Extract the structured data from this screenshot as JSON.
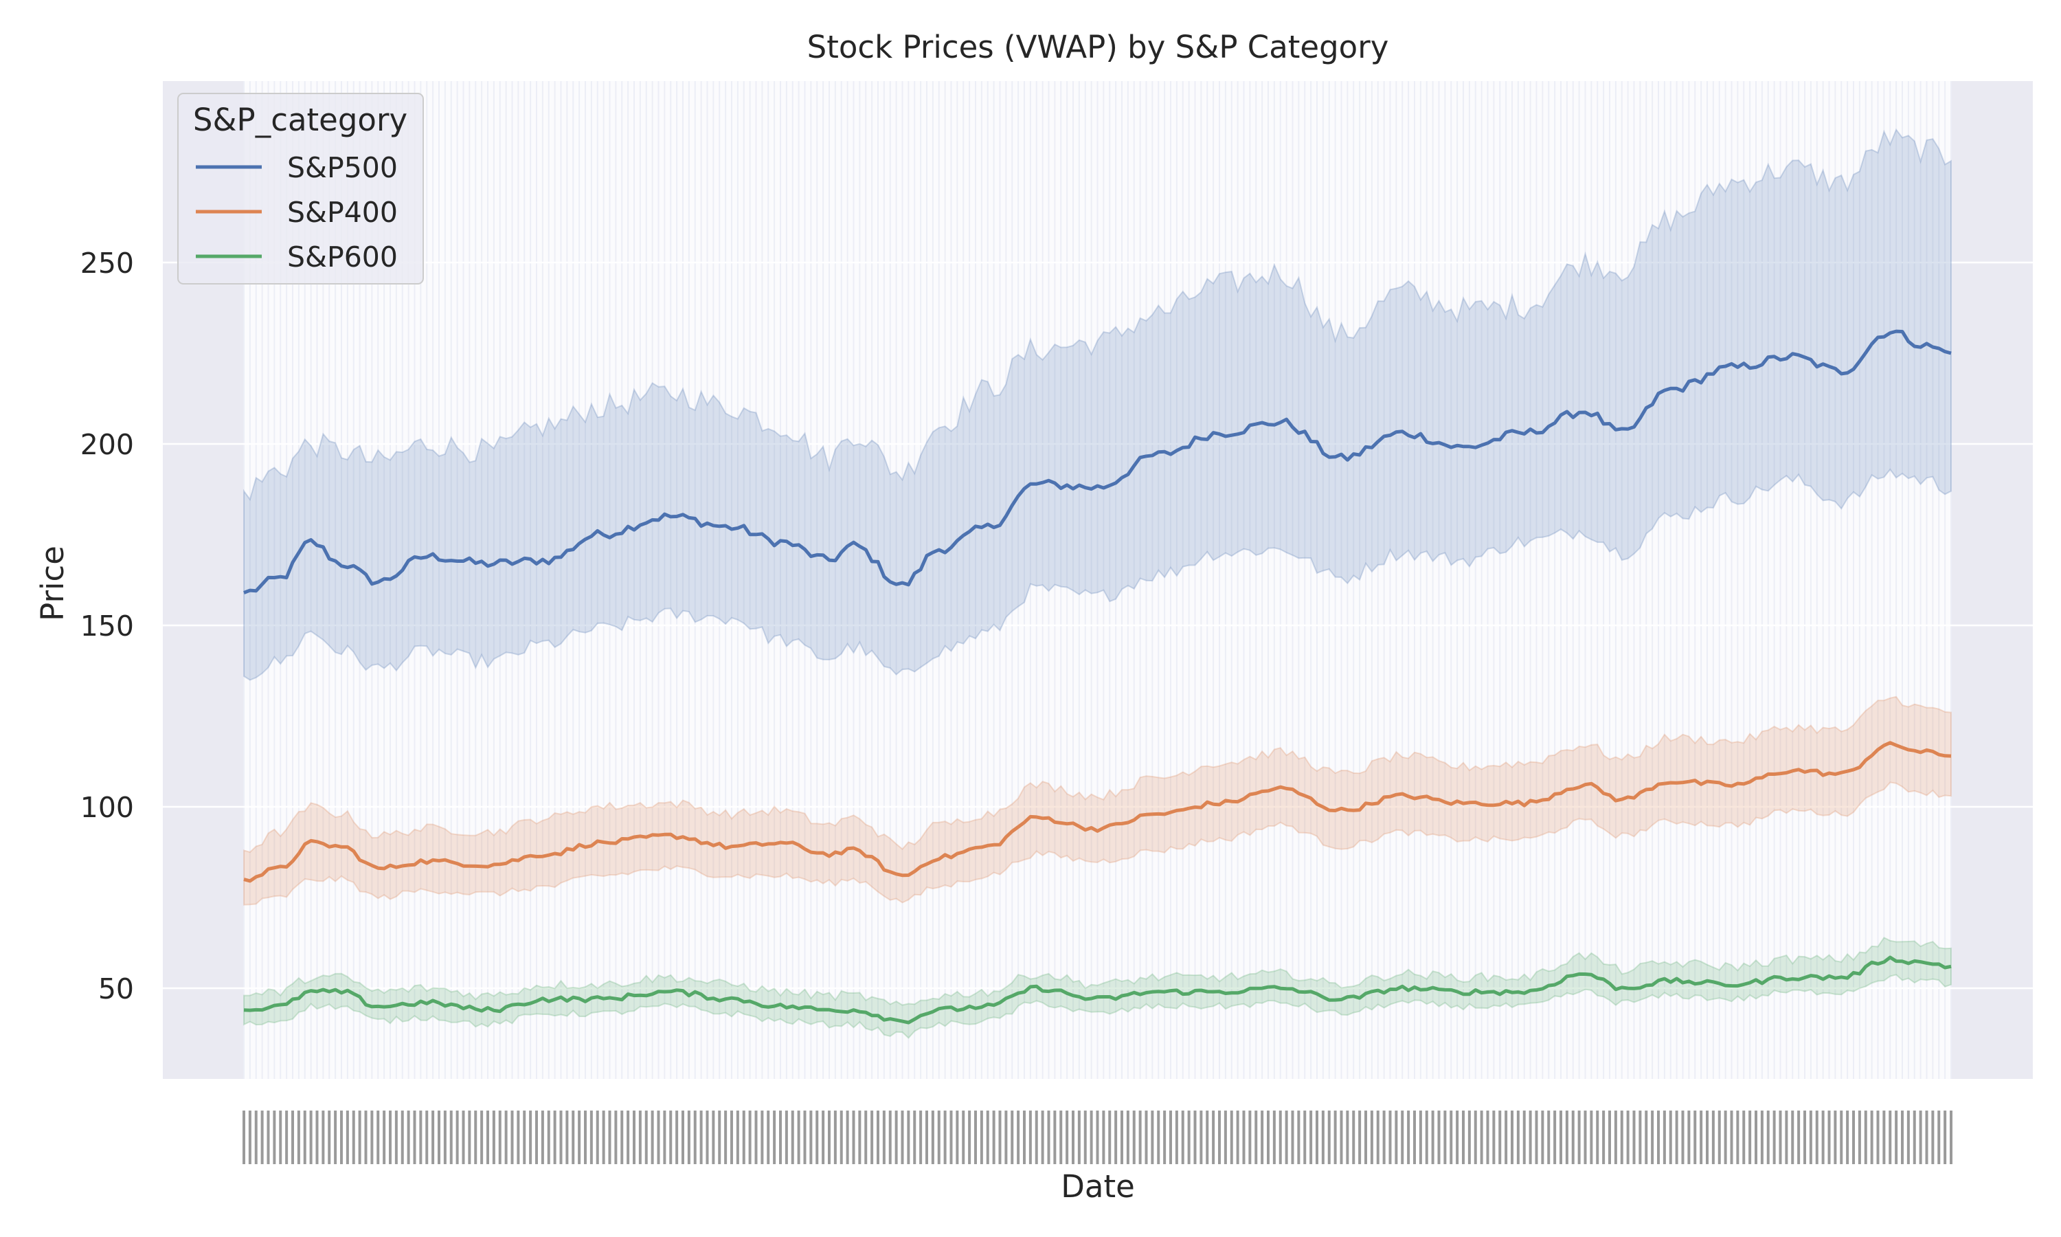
{
  "chart_data": {
    "type": "line",
    "title": "Stock Prices (VWAP) by S&P Category",
    "xlabel": "Date",
    "ylabel": "Price",
    "ylim": [
      25,
      300
    ],
    "yticks": [
      50,
      100,
      150,
      200,
      250
    ],
    "x_tick_labels_legible": false,
    "legend": {
      "title": "S&P_category",
      "placement": "top-left"
    },
    "grid": true,
    "confidence_band": true,
    "series": [
      {
        "name": "S&P500",
        "color": "#4c72b0",
        "keypoints": [
          [
            0,
            159
          ],
          [
            6,
            163
          ],
          [
            11,
            173
          ],
          [
            16,
            167
          ],
          [
            22,
            162
          ],
          [
            30,
            169
          ],
          [
            40,
            167
          ],
          [
            50,
            168
          ],
          [
            58,
            175
          ],
          [
            70,
            180
          ],
          [
            80,
            177
          ],
          [
            88,
            173
          ],
          [
            96,
            168
          ],
          [
            100,
            172
          ],
          [
            108,
            161
          ],
          [
            114,
            171
          ],
          [
            122,
            177
          ],
          [
            130,
            189
          ],
          [
            140,
            188
          ],
          [
            150,
            197
          ],
          [
            160,
            203
          ],
          [
            170,
            206
          ],
          [
            180,
            196
          ],
          [
            190,
            203
          ],
          [
            200,
            199
          ],
          [
            210,
            203
          ],
          [
            220,
            209
          ],
          [
            226,
            203
          ],
          [
            234,
            215
          ],
          [
            244,
            221
          ],
          [
            254,
            224
          ],
          [
            262,
            220
          ],
          [
            270,
            231
          ],
          [
            276,
            227
          ],
          [
            280,
            225
          ]
        ],
        "upper_keypoints": [
          [
            0,
            187
          ],
          [
            6,
            193
          ],
          [
            11,
            200
          ],
          [
            16,
            198
          ],
          [
            22,
            195
          ],
          [
            30,
            200
          ],
          [
            40,
            198
          ],
          [
            50,
            205
          ],
          [
            58,
            210
          ],
          [
            70,
            214
          ],
          [
            80,
            210
          ],
          [
            88,
            205
          ],
          [
            96,
            196
          ],
          [
            100,
            203
          ],
          [
            108,
            192
          ],
          [
            114,
            205
          ],
          [
            122,
            215
          ],
          [
            130,
            226
          ],
          [
            140,
            228
          ],
          [
            150,
            236
          ],
          [
            160,
            244
          ],
          [
            170,
            247
          ],
          [
            180,
            230
          ],
          [
            190,
            242
          ],
          [
            200,
            237
          ],
          [
            210,
            238
          ],
          [
            220,
            250
          ],
          [
            226,
            248
          ],
          [
            234,
            262
          ],
          [
            244,
            272
          ],
          [
            254,
            276
          ],
          [
            262,
            272
          ],
          [
            270,
            284
          ],
          [
            276,
            281
          ],
          [
            280,
            278
          ]
        ],
        "lower_keypoints": [
          [
            0,
            136
          ],
          [
            6,
            140
          ],
          [
            11,
            148
          ],
          [
            16,
            143
          ],
          [
            22,
            138
          ],
          [
            30,
            143
          ],
          [
            40,
            140
          ],
          [
            50,
            145
          ],
          [
            58,
            149
          ],
          [
            70,
            153
          ],
          [
            80,
            152
          ],
          [
            88,
            146
          ],
          [
            96,
            141
          ],
          [
            100,
            144
          ],
          [
            108,
            136
          ],
          [
            114,
            143
          ],
          [
            122,
            148
          ],
          [
            130,
            160
          ],
          [
            140,
            158
          ],
          [
            150,
            164
          ],
          [
            160,
            170
          ],
          [
            170,
            171
          ],
          [
            180,
            163
          ],
          [
            190,
            170
          ],
          [
            200,
            168
          ],
          [
            210,
            173
          ],
          [
            220,
            176
          ],
          [
            226,
            170
          ],
          [
            234,
            180
          ],
          [
            244,
            185
          ],
          [
            254,
            190
          ],
          [
            262,
            184
          ],
          [
            270,
            192
          ],
          [
            276,
            190
          ],
          [
            280,
            187
          ]
        ]
      },
      {
        "name": "S&P400",
        "color": "#dd8452",
        "keypoints": [
          [
            0,
            80
          ],
          [
            6,
            83
          ],
          [
            11,
            90
          ],
          [
            16,
            89
          ],
          [
            22,
            83
          ],
          [
            30,
            85
          ],
          [
            40,
            84
          ],
          [
            50,
            87
          ],
          [
            58,
            90
          ],
          [
            70,
            92
          ],
          [
            80,
            89
          ],
          [
            88,
            90
          ],
          [
            96,
            87
          ],
          [
            100,
            88
          ],
          [
            108,
            81
          ],
          [
            114,
            86
          ],
          [
            122,
            89
          ],
          [
            130,
            97
          ],
          [
            140,
            94
          ],
          [
            150,
            98
          ],
          [
            160,
            101
          ],
          [
            170,
            105
          ],
          [
            180,
            99
          ],
          [
            190,
            103
          ],
          [
            200,
            101
          ],
          [
            210,
            101
          ],
          [
            220,
            106
          ],
          [
            226,
            102
          ],
          [
            234,
            107
          ],
          [
            244,
            106
          ],
          [
            254,
            110
          ],
          [
            262,
            109
          ],
          [
            270,
            117
          ],
          [
            276,
            115
          ],
          [
            280,
            114
          ]
        ],
        "upper_keypoints": [
          [
            0,
            88
          ],
          [
            6,
            93
          ],
          [
            11,
            100
          ],
          [
            16,
            98
          ],
          [
            22,
            92
          ],
          [
            30,
            94
          ],
          [
            40,
            93
          ],
          [
            50,
            97
          ],
          [
            58,
            100
          ],
          [
            70,
            101
          ],
          [
            80,
            98
          ],
          [
            88,
            99
          ],
          [
            96,
            95
          ],
          [
            100,
            97
          ],
          [
            108,
            89
          ],
          [
            114,
            95
          ],
          [
            122,
            98
          ],
          [
            130,
            106
          ],
          [
            140,
            103
          ],
          [
            150,
            108
          ],
          [
            160,
            112
          ],
          [
            170,
            115
          ],
          [
            180,
            109
          ],
          [
            190,
            114
          ],
          [
            200,
            111
          ],
          [
            210,
            112
          ],
          [
            220,
            117
          ],
          [
            226,
            113
          ],
          [
            234,
            119
          ],
          [
            244,
            118
          ],
          [
            254,
            122
          ],
          [
            262,
            121
          ],
          [
            270,
            130
          ],
          [
            276,
            127
          ],
          [
            280,
            126
          ]
        ],
        "lower_keypoints": [
          [
            0,
            73
          ],
          [
            6,
            75
          ],
          [
            11,
            80
          ],
          [
            16,
            80
          ],
          [
            22,
            75
          ],
          [
            30,
            77
          ],
          [
            40,
            76
          ],
          [
            50,
            78
          ],
          [
            58,
            81
          ],
          [
            70,
            83
          ],
          [
            80,
            81
          ],
          [
            88,
            81
          ],
          [
            96,
            79
          ],
          [
            100,
            80
          ],
          [
            108,
            74
          ],
          [
            114,
            78
          ],
          [
            122,
            81
          ],
          [
            130,
            87
          ],
          [
            140,
            85
          ],
          [
            150,
            88
          ],
          [
            160,
            91
          ],
          [
            170,
            95
          ],
          [
            180,
            89
          ],
          [
            190,
            93
          ],
          [
            200,
            91
          ],
          [
            210,
            91
          ],
          [
            220,
            96
          ],
          [
            226,
            92
          ],
          [
            234,
            96
          ],
          [
            244,
            95
          ],
          [
            254,
            99
          ],
          [
            262,
            98
          ],
          [
            270,
            106
          ],
          [
            276,
            104
          ],
          [
            280,
            103
          ]
        ]
      },
      {
        "name": "S&P600",
        "color": "#55a868",
        "keypoints": [
          [
            0,
            44
          ],
          [
            6,
            45
          ],
          [
            11,
            49
          ],
          [
            16,
            49
          ],
          [
            22,
            45
          ],
          [
            30,
            46
          ],
          [
            40,
            44
          ],
          [
            50,
            47
          ],
          [
            58,
            47
          ],
          [
            70,
            49
          ],
          [
            80,
            47
          ],
          [
            88,
            45
          ],
          [
            96,
            44
          ],
          [
            100,
            44
          ],
          [
            108,
            41
          ],
          [
            114,
            44
          ],
          [
            122,
            45
          ],
          [
            130,
            50
          ],
          [
            140,
            47
          ],
          [
            150,
            49
          ],
          [
            160,
            49
          ],
          [
            170,
            50
          ],
          [
            180,
            47
          ],
          [
            190,
            50
          ],
          [
            200,
            49
          ],
          [
            210,
            49
          ],
          [
            220,
            54
          ],
          [
            226,
            50
          ],
          [
            234,
            52
          ],
          [
            244,
            51
          ],
          [
            254,
            53
          ],
          [
            262,
            53
          ],
          [
            270,
            58
          ],
          [
            276,
            57
          ],
          [
            280,
            56
          ]
        ],
        "upper_keypoints": [
          [
            0,
            48
          ],
          [
            6,
            49
          ],
          [
            11,
            53
          ],
          [
            16,
            53
          ],
          [
            22,
            49
          ],
          [
            30,
            50
          ],
          [
            40,
            48
          ],
          [
            50,
            51
          ],
          [
            58,
            51
          ],
          [
            70,
            53
          ],
          [
            80,
            51
          ],
          [
            88,
            49
          ],
          [
            96,
            48
          ],
          [
            100,
            48
          ],
          [
            108,
            45
          ],
          [
            114,
            48
          ],
          [
            122,
            49
          ],
          [
            130,
            54
          ],
          [
            140,
            51
          ],
          [
            150,
            53
          ],
          [
            160,
            53
          ],
          [
            170,
            54
          ],
          [
            180,
            51
          ],
          [
            190,
            54
          ],
          [
            200,
            53
          ],
          [
            210,
            53
          ],
          [
            220,
            59
          ],
          [
            226,
            55
          ],
          [
            234,
            57
          ],
          [
            244,
            56
          ],
          [
            254,
            58
          ],
          [
            262,
            58
          ],
          [
            270,
            63
          ],
          [
            276,
            62
          ],
          [
            280,
            61
          ]
        ],
        "lower_keypoints": [
          [
            0,
            40
          ],
          [
            6,
            41
          ],
          [
            11,
            45
          ],
          [
            16,
            45
          ],
          [
            22,
            41
          ],
          [
            30,
            42
          ],
          [
            40,
            40
          ],
          [
            50,
            43
          ],
          [
            58,
            43
          ],
          [
            70,
            45
          ],
          [
            80,
            43
          ],
          [
            88,
            41
          ],
          [
            96,
            40
          ],
          [
            100,
            40
          ],
          [
            108,
            37
          ],
          [
            114,
            40
          ],
          [
            122,
            41
          ],
          [
            130,
            46
          ],
          [
            140,
            43
          ],
          [
            150,
            45
          ],
          [
            160,
            45
          ],
          [
            170,
            46
          ],
          [
            180,
            43
          ],
          [
            190,
            46
          ],
          [
            200,
            45
          ],
          [
            210,
            45
          ],
          [
            220,
            49
          ],
          [
            226,
            46
          ],
          [
            234,
            48
          ],
          [
            244,
            47
          ],
          [
            254,
            49
          ],
          [
            262,
            49
          ],
          [
            270,
            53
          ],
          [
            276,
            52
          ],
          [
            280,
            51
          ]
        ]
      }
    ]
  }
}
